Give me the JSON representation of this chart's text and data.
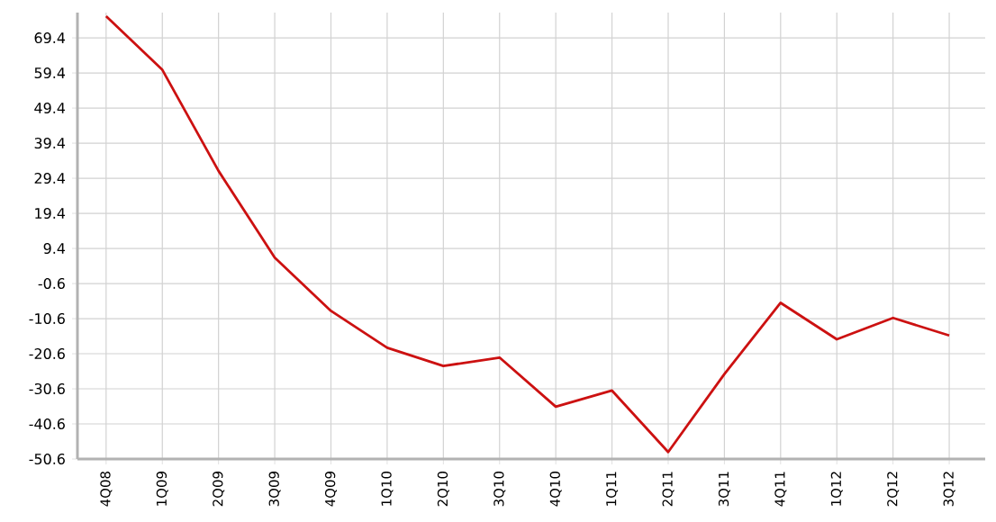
{
  "chart_data": {
    "type": "line",
    "categories": [
      "4Q08",
      "1Q09",
      "2Q09",
      "3Q09",
      "4Q09",
      "1Q10",
      "2Q10",
      "3Q10",
      "4Q10",
      "1Q11",
      "2Q11",
      "3Q11",
      "4Q11",
      "1Q12",
      "2Q12",
      "3Q12"
    ],
    "series": [
      {
        "color": "#cc1111",
        "values": [
          75.6,
          60.3,
          31.5,
          6.8,
          -8.4,
          -18.9,
          -24.1,
          -21.7,
          -35.7,
          -31.1,
          -48.6,
          -26.4,
          -6.1,
          -16.5,
          -10.4,
          -15.4
        ]
      }
    ],
    "ylim": [
      -50.6,
      76.6
    ],
    "yticks": [
      -50.6,
      -40.6,
      -30.6,
      -20.6,
      -10.6,
      -0.6,
      9.4,
      19.4,
      29.4,
      39.4,
      49.4,
      59.4,
      69.4
    ],
    "grid": true,
    "marker": "none",
    "line_style": "solid"
  }
}
